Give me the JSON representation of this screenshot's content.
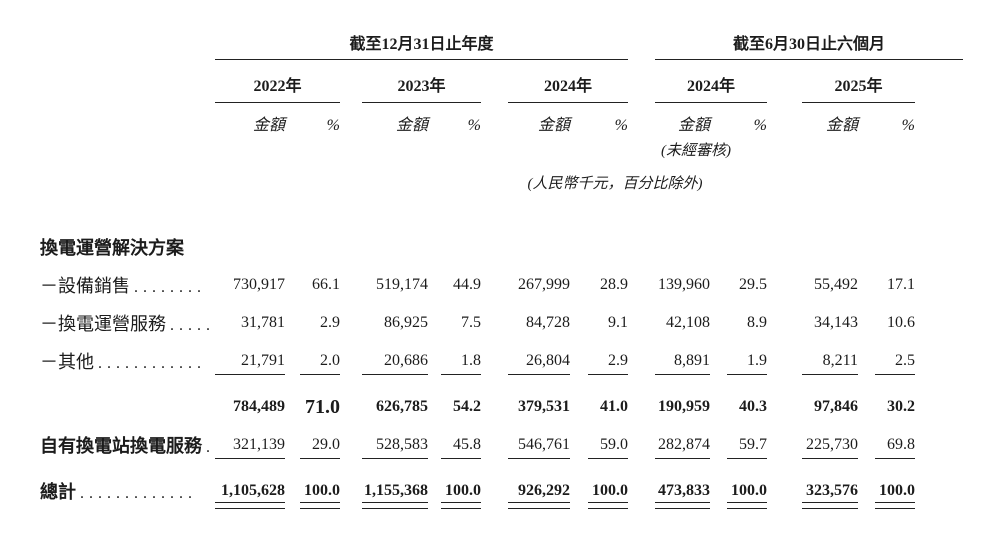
{
  "table": {
    "unit_note": "(人民幣千元，百分比除外)",
    "unaudited_note": "(未經審核)",
    "subheaders": {
      "amount": "金額",
      "percent": "%"
    },
    "col_groups": [
      {
        "period": "截至12月31日止年度",
        "years": [
          {
            "label": "2022年"
          },
          {
            "label": "2023年"
          },
          {
            "label": "2024年"
          }
        ]
      },
      {
        "period": "截至6月30日止六個月",
        "years": [
          {
            "label": "2024年"
          },
          {
            "label": "2025年"
          }
        ]
      }
    ],
    "rows": [
      {
        "kind": "section",
        "label": "換電運營解決方案",
        "dots": ""
      },
      {
        "kind": "item",
        "label": "－設備銷售",
        "dots": "........",
        "values": [
          "730,917",
          "66.1",
          "519,174",
          "44.9",
          "267,999",
          "28.9",
          "139,960",
          "29.5",
          "55,492",
          "17.1"
        ]
      },
      {
        "kind": "item",
        "label": "－換電運營服務",
        "dots": ".....",
        "values": [
          "31,781",
          "2.9",
          "86,925",
          "7.5",
          "84,728",
          "9.1",
          "42,108",
          "8.9",
          "34,143",
          "10.6"
        ]
      },
      {
        "kind": "item",
        "label": "－其他",
        "dots": "............",
        "rule_below": "single",
        "values": [
          "21,791",
          "2.0",
          "20,686",
          "1.8",
          "26,804",
          "2.9",
          "8,891",
          "1.9",
          "8,211",
          "2.5"
        ]
      },
      {
        "kind": "subtotal",
        "label": "",
        "dots": "",
        "bold": true,
        "emphasized_value_index": 1,
        "values": [
          "784,489",
          "71.0",
          "626,785",
          "54.2",
          "379,531",
          "41.0",
          "190,959",
          "40.3",
          "97,846",
          "30.2"
        ]
      },
      {
        "kind": "item-bold-label",
        "label": "自有換電站換電服務",
        "dots": ".",
        "rule_below": "single",
        "values": [
          "321,139",
          "29.0",
          "528,583",
          "45.8",
          "546,761",
          "59.0",
          "282,874",
          "59.7",
          "225,730",
          "69.8"
        ]
      },
      {
        "kind": "total",
        "label": "總計",
        "dots": ".............",
        "bold": true,
        "rule_below": "double",
        "values": [
          "1,105,628",
          "100.0",
          "1,155,368",
          "100.0",
          "926,292",
          "100.0",
          "473,833",
          "100.0",
          "323,576",
          "100.0"
        ]
      }
    ]
  }
}
